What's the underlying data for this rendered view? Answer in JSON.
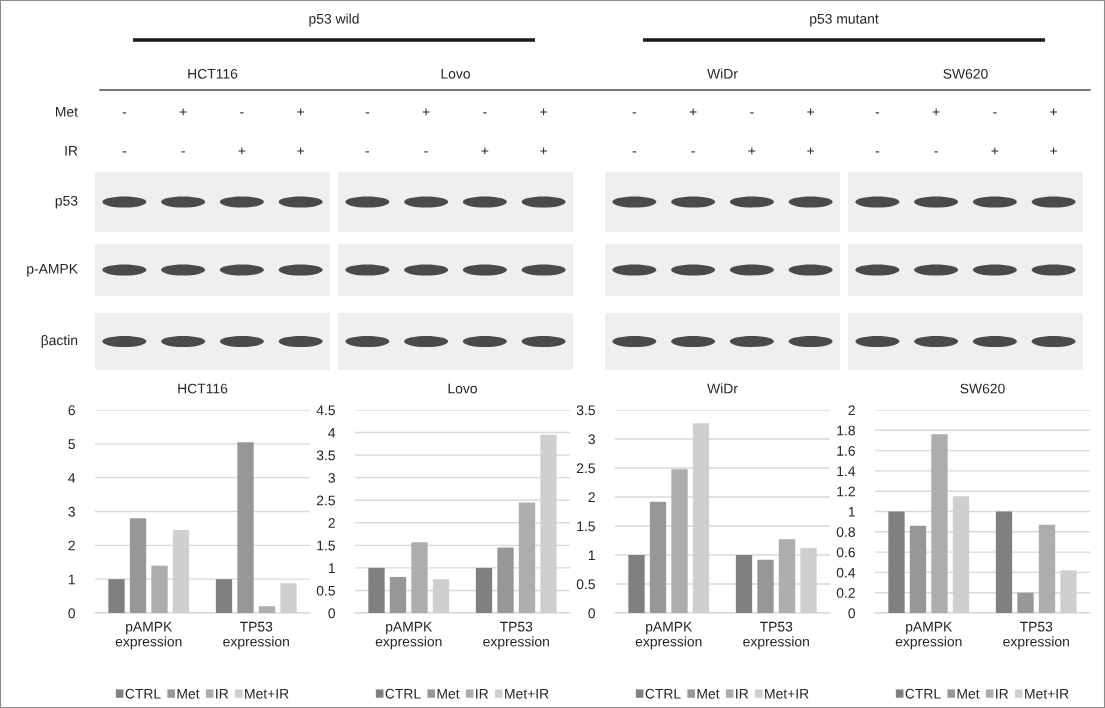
{
  "chart_data": [
    {
      "type": "other",
      "categories": [
        "HCT116",
        "Lovo",
        "WiDr",
        "SW620"
      ],
      "annotations": [
        "p53 wild",
        "p53 mutant",
        "Met",
        "IR",
        "p53",
        "p-AMPK",
        "βactin",
        "-",
        "+",
        "-",
        "+",
        "-",
        "+",
        "-",
        "+",
        "-",
        "+",
        "-",
        "+",
        "-",
        "+",
        "-",
        "+",
        "-",
        "-",
        "+",
        "+",
        "-",
        "-",
        "+",
        "+",
        "-",
        "-",
        "+",
        "+",
        "-",
        "-",
        "+",
        "+"
      ]
    },
    {
      "type": "bar",
      "title": "HCT116",
      "categories": [
        "pAMPK\nexpression",
        "TP53\nexpression"
      ],
      "series": [
        {
          "name": "CTRL",
          "color": "#808080",
          "values": [
            1,
            1
          ]
        },
        {
          "name": "Met",
          "color": "#979797",
          "values": [
            2.8,
            5.05
          ]
        },
        {
          "name": "IR",
          "color": "#adadad",
          "values": [
            1.4,
            0.2
          ]
        },
        {
          "name": "Met+IR",
          "color": "#cfcfcf",
          "values": [
            2.45,
            0.88
          ]
        }
      ],
      "ylim": [
        0,
        6
      ],
      "yticks": [
        0,
        1,
        2,
        3,
        4,
        5,
        6
      ],
      "grid": "y",
      "legend": "bottom"
    },
    {
      "type": "bar",
      "title": "Lovo",
      "categories": [
        "pAMPK\nexpression",
        "TP53\nexpression"
      ],
      "series": [
        {
          "name": "CTRL",
          "color": "#808080",
          "values": [
            1,
            1
          ]
        },
        {
          "name": "Met",
          "color": "#979797",
          "values": [
            0.8,
            1.45
          ]
        },
        {
          "name": "IR",
          "color": "#adadad",
          "values": [
            1.57,
            2.45
          ]
        },
        {
          "name": "Met+IR",
          "color": "#cfcfcf",
          "values": [
            0.75,
            3.95
          ]
        }
      ],
      "ylim": [
        0,
        4.5
      ],
      "yticks": [
        0,
        0.5,
        1,
        1.5,
        2,
        2.5,
        3,
        3.5,
        4,
        4.5
      ],
      "grid": "y",
      "legend": "bottom"
    },
    {
      "type": "bar",
      "title": "WiDr",
      "categories": [
        "pAMPK\nexpression",
        "TP53\nexpression"
      ],
      "series": [
        {
          "name": "CTRL",
          "color": "#808080",
          "values": [
            1,
            1
          ]
        },
        {
          "name": "Met",
          "color": "#979797",
          "values": [
            1.92,
            0.92
          ]
        },
        {
          "name": "IR",
          "color": "#adadad",
          "values": [
            2.48,
            1.27
          ]
        },
        {
          "name": "Met+IR",
          "color": "#cfcfcf",
          "values": [
            3.27,
            1.12
          ]
        }
      ],
      "ylim": [
        0,
        3.5
      ],
      "yticks": [
        0,
        0.5,
        1,
        1.5,
        2,
        2.5,
        3,
        3.5
      ],
      "grid": "y",
      "legend": "bottom"
    },
    {
      "type": "bar",
      "title": "SW620",
      "categories": [
        "pAMPK\nexpression",
        "TP53\nexpression"
      ],
      "series": [
        {
          "name": "CTRL",
          "color": "#808080",
          "values": [
            1,
            1
          ]
        },
        {
          "name": "Met",
          "color": "#979797",
          "values": [
            0.86,
            0.2
          ]
        },
        {
          "name": "IR",
          "color": "#adadad",
          "values": [
            1.76,
            0.87
          ]
        },
        {
          "name": "Met+IR",
          "color": "#cfcfcf",
          "values": [
            1.15,
            0.42
          ]
        }
      ],
      "ylim": [
        0,
        2
      ],
      "yticks": [
        0,
        0.2,
        0.4,
        0.6,
        0.8,
        1,
        1.2,
        1.4,
        1.6,
        1.8,
        2
      ],
      "grid": "y",
      "legend": "bottom"
    }
  ]
}
